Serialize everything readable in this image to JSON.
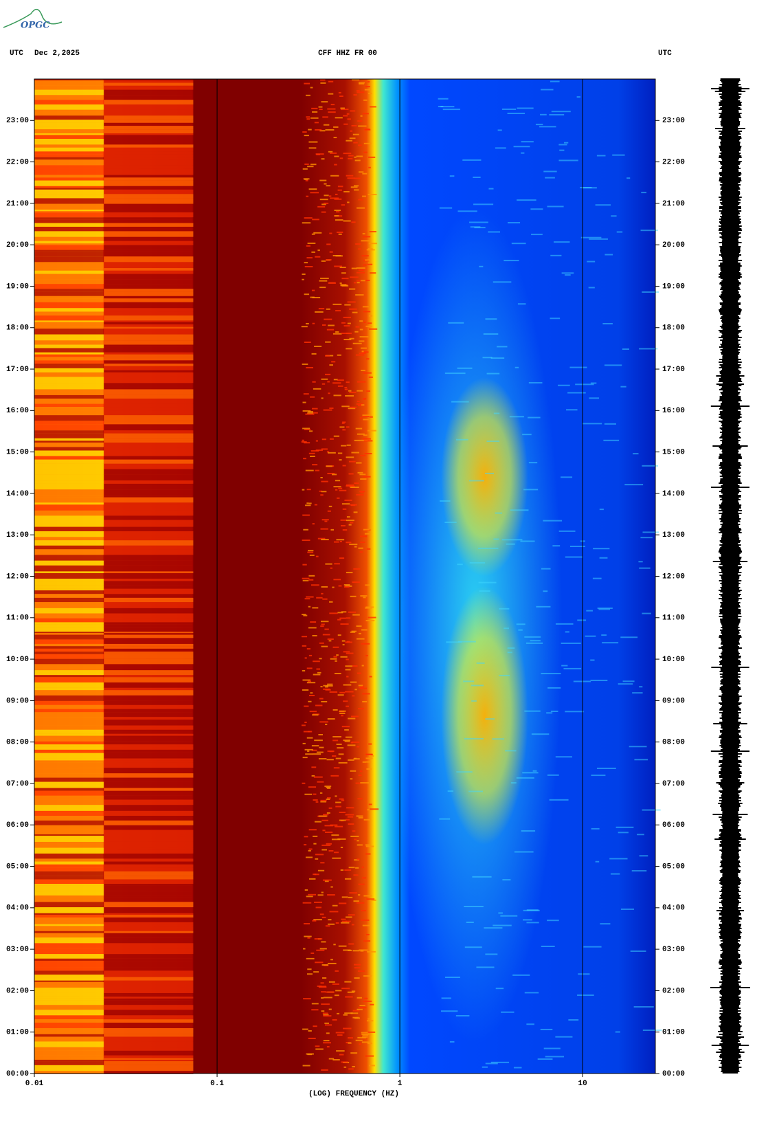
{
  "logo": "OPGC",
  "chart_data": {
    "type": "spectrogram",
    "header_left": "UTC",
    "date": "Dec 2,2025",
    "title": "CFF HHZ FR 00",
    "header_right": "UTC",
    "xlabel": "(LOG) FREQUENCY (HZ)",
    "xscale": "log",
    "xlim": [
      0.01,
      25
    ],
    "xticks": [
      0.01,
      0.1,
      1,
      10
    ],
    "ylim": [
      0,
      24
    ],
    "yticks": [
      {
        "value": 0,
        "label": "00:00"
      },
      {
        "value": 1,
        "label": "01:00"
      },
      {
        "value": 2,
        "label": "02:00"
      },
      {
        "value": 3,
        "label": "03:00"
      },
      {
        "value": 4,
        "label": "04:00"
      },
      {
        "value": 5,
        "label": "05:00"
      },
      {
        "value": 6,
        "label": "06:00"
      },
      {
        "value": 7,
        "label": "07:00"
      },
      {
        "value": 8,
        "label": "08:00"
      },
      {
        "value": 9,
        "label": "09:00"
      },
      {
        "value": 10,
        "label": "10:00"
      },
      {
        "value": 11,
        "label": "11:00"
      },
      {
        "value": 12,
        "label": "12:00"
      },
      {
        "value": 13,
        "label": "13:00"
      },
      {
        "value": 14,
        "label": "14:00"
      },
      {
        "value": 15,
        "label": "15:00"
      },
      {
        "value": 16,
        "label": "16:00"
      },
      {
        "value": 17,
        "label": "17:00"
      },
      {
        "value": 18,
        "label": "18:00"
      },
      {
        "value": 19,
        "label": "19:00"
      },
      {
        "value": 20,
        "label": "20:00"
      },
      {
        "value": 21,
        "label": "21:00"
      },
      {
        "value": 22,
        "label": "22:00"
      },
      {
        "value": 23,
        "label": "23:00"
      }
    ]
  }
}
